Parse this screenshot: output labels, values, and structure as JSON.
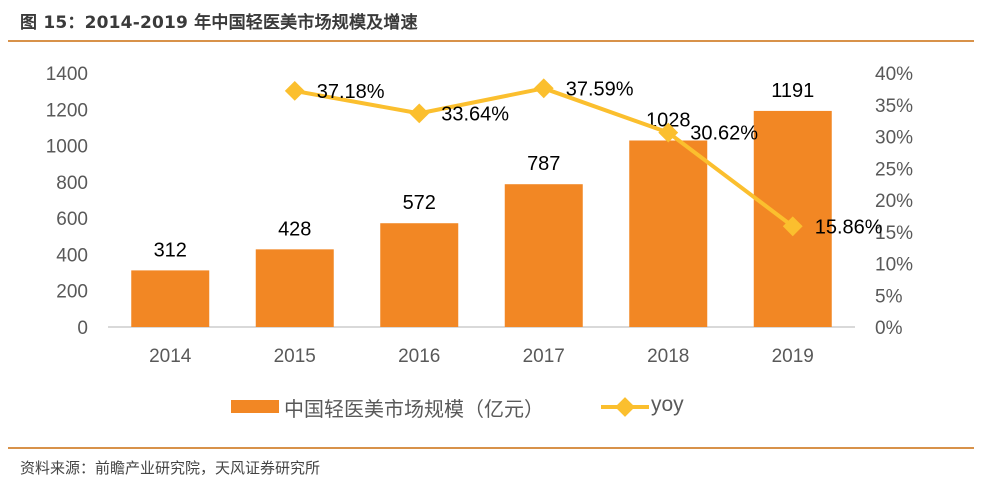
{
  "header": {
    "title": "图 15：2014-2019 年中国轻医美市场规模及增速"
  },
  "footer": {
    "source": "资料来源：前瞻产业研究院，天风证券研究所"
  },
  "colors": {
    "bar": "#f28724",
    "line": "#fbbf2e",
    "rule": "#d8924a",
    "axis": "#d9d9d9"
  },
  "chart_data": {
    "type": "bar",
    "title": "2014-2019 年中国轻医美市场规模及增速",
    "categories": [
      "2014",
      "2015",
      "2016",
      "2017",
      "2018",
      "2019"
    ],
    "series": [
      {
        "name": "中国轻医美市场规模（亿元）",
        "type": "bar",
        "axis": "left",
        "values": [
          312,
          428,
          572,
          787,
          1028,
          1191
        ],
        "labels": [
          "312",
          "428",
          "572",
          "787",
          "1028",
          "1191"
        ]
      },
      {
        "name": "yoy",
        "type": "line",
        "axis": "right",
        "values": [
          null,
          37.18,
          33.64,
          37.59,
          30.62,
          15.86
        ],
        "labels": [
          "",
          "37.18%",
          "33.64%",
          "37.59%",
          "30.62%",
          "15.86%"
        ]
      }
    ],
    "left_axis": {
      "min": 0,
      "max": 1400,
      "ticks": [
        "0",
        "200",
        "400",
        "600",
        "800",
        "1000",
        "1200",
        "1400"
      ]
    },
    "right_axis": {
      "min": 0,
      "max": 40,
      "ticks": [
        "0%",
        "5%",
        "10%",
        "15%",
        "20%",
        "25%",
        "30%",
        "35%",
        "40%"
      ]
    },
    "legend": {
      "position": "bottom",
      "bar_label": "中国轻医美市场规模（亿元）",
      "line_label": "yoy"
    },
    "grid": false
  }
}
